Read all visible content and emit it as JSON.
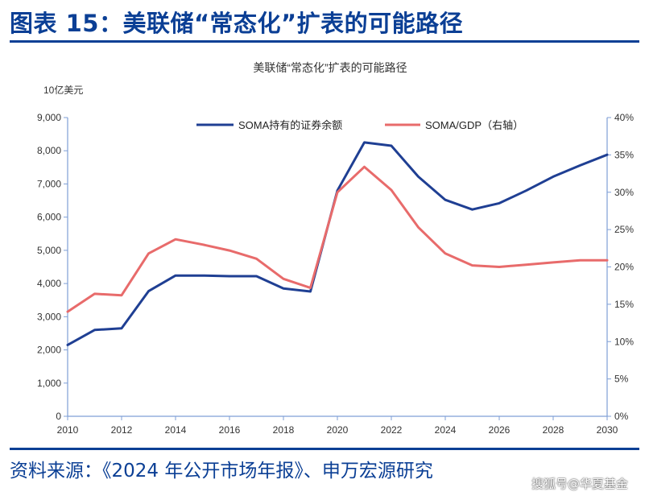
{
  "header": {
    "title": "图表 15：美联储“常态化”扩表的可能路径"
  },
  "footer": {
    "source": "资料来源：《2024 年公开市场年报》、申万宏源研究"
  },
  "watermark": {
    "text": "搜狐号@华夏基金"
  },
  "colors": {
    "brand": "#0b3f95",
    "soma": "#1f3f93",
    "ratio": "#e86b6b",
    "axis": "#7f9fd6"
  },
  "chart_data": {
    "type": "line",
    "title": "美联储“常态化”扩表的可能路径",
    "left_unit": "10亿美元",
    "x": [
      2010,
      2011,
      2012,
      2013,
      2014,
      2015,
      2016,
      2017,
      2018,
      2019,
      2020,
      2021,
      2022,
      2023,
      2024,
      2025,
      2026,
      2027,
      2028,
      2029,
      2030
    ],
    "xticks": [
      "2010",
      "2012",
      "2014",
      "2016",
      "2018",
      "2020",
      "2022",
      "2024",
      "2026",
      "2028",
      "2030"
    ],
    "xlim": [
      2010,
      2030
    ],
    "ylim_left": [
      0,
      9000
    ],
    "ylim_right": [
      0,
      40
    ],
    "yticks_left": [
      "0",
      "1,000",
      "2,000",
      "3,000",
      "4,000",
      "5,000",
      "6,000",
      "7,000",
      "8,000",
      "9,000"
    ],
    "yticks_right": [
      "0%",
      "5%",
      "10%",
      "15%",
      "20%",
      "25%",
      "30%",
      "35%",
      "40%"
    ],
    "grid": false,
    "legend_position": "top",
    "series": [
      {
        "name": "SOMA持有的证券余额",
        "axis": "left",
        "values": [
          2150,
          2600,
          2650,
          3770,
          4240,
          4240,
          4220,
          4220,
          3850,
          3760,
          6800,
          8250,
          8150,
          7220,
          6520,
          6230,
          6420,
          6800,
          7220,
          7560,
          7880
        ]
      },
      {
        "name": "SOMA/GDP（右轴）",
        "axis": "right",
        "values": [
          14.0,
          16.4,
          16.2,
          21.8,
          23.7,
          23.0,
          22.2,
          21.1,
          18.4,
          17.2,
          30.0,
          33.4,
          30.3,
          25.3,
          21.8,
          20.2,
          20.0,
          20.3,
          20.6,
          20.9,
          20.9
        ]
      }
    ]
  }
}
